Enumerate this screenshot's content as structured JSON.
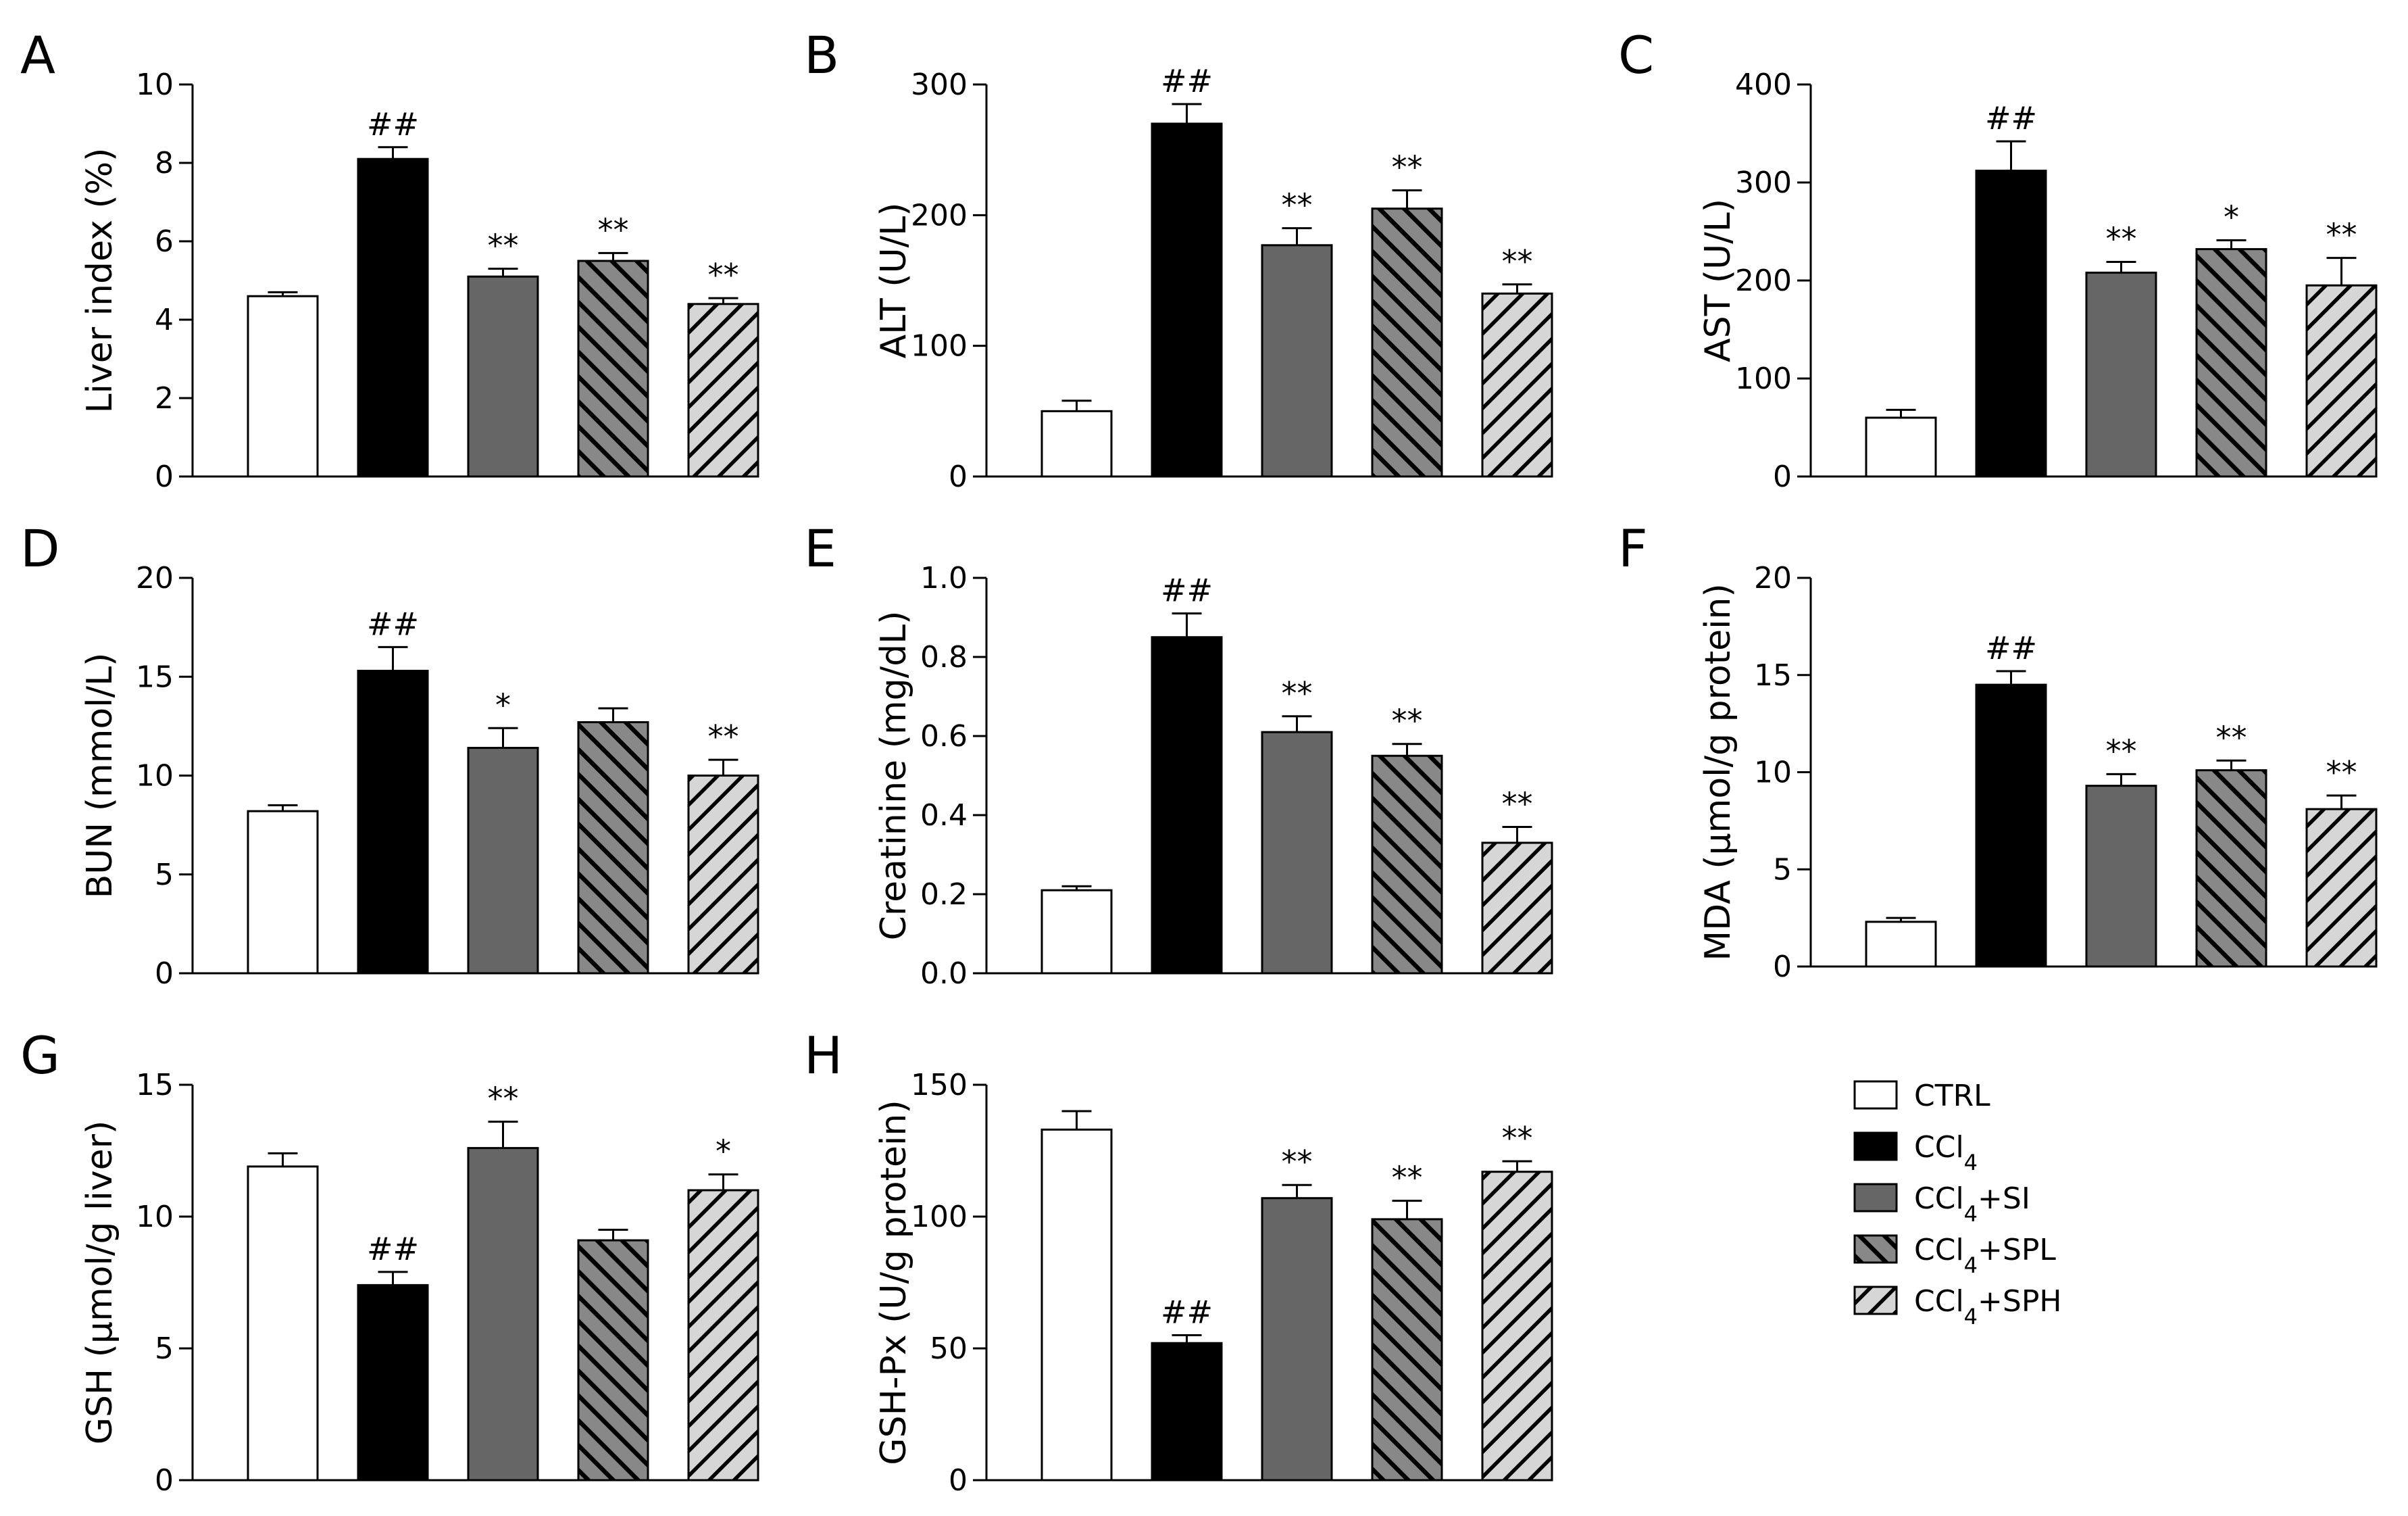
{
  "legend": [
    {
      "label": "CTRL",
      "sub": "",
      "suffix": ""
    },
    {
      "label": "CCl",
      "sub": "4",
      "suffix": ""
    },
    {
      "label": "CCl",
      "sub": "4",
      "suffix": "+SI"
    },
    {
      "label": "CCl",
      "sub": "4",
      "suffix": "+SPL"
    },
    {
      "label": "CCl",
      "sub": "4",
      "suffix": "+SPH"
    }
  ],
  "colors": {
    "ctrl": "#ffffff",
    "ccl4": "#000000",
    "si": "#666666",
    "spl_bg": "#888888",
    "sph_bg": "#d6d6d6",
    "stroke": "#000000"
  },
  "chart_data": [
    {
      "type": "bar",
      "panel": "A",
      "ylabel": "Liver index (%)",
      "categories": [
        "CTRL",
        "CCl4",
        "CCl4+SI",
        "CCl4+SPL",
        "CCl4+SPH"
      ],
      "values": [
        4.6,
        8.1,
        5.1,
        5.5,
        4.4
      ],
      "errors": [
        0.1,
        0.3,
        0.2,
        0.2,
        0.15
      ],
      "sig": [
        "",
        "##",
        "**",
        "**",
        "**"
      ],
      "ylim": [
        0,
        10
      ],
      "yticks": [
        0,
        2,
        4,
        6,
        8,
        10
      ],
      "ytick_labels": [
        "0",
        "2",
        "4",
        "6",
        "8",
        "10"
      ]
    },
    {
      "type": "bar",
      "panel": "B",
      "ylabel": "ALT (U/L)",
      "categories": [
        "CTRL",
        "CCl4",
        "CCl4+SI",
        "CCl4+SPL",
        "CCl4+SPH"
      ],
      "values": [
        50,
        270,
        177,
        205,
        140
      ],
      "errors": [
        8,
        15,
        13,
        14,
        7
      ],
      "sig": [
        "",
        "##",
        "**",
        "**",
        "**"
      ],
      "ylim": [
        0,
        300
      ],
      "yticks": [
        0,
        100,
        200,
        300
      ],
      "ytick_labels": [
        "0",
        "100",
        "200",
        "300"
      ]
    },
    {
      "type": "bar",
      "panel": "C",
      "ylabel": "AST (U/L)",
      "categories": [
        "CTRL",
        "CCl4",
        "CCl4+SI",
        "CCl4+SPL",
        "CCl4+SPH"
      ],
      "values": [
        60,
        312,
        208,
        232,
        195
      ],
      "errors": [
        8,
        30,
        11,
        9,
        28
      ],
      "sig": [
        "",
        "##",
        "**",
        "*",
        "**"
      ],
      "ylim": [
        0,
        400
      ],
      "yticks": [
        0,
        100,
        200,
        300,
        400
      ],
      "ytick_labels": [
        "0",
        "100",
        "200",
        "300",
        "400"
      ]
    },
    {
      "type": "bar",
      "panel": "D",
      "ylabel": "BUN (mmol/L)",
      "categories": [
        "CTRL",
        "CCl4",
        "CCl4+SI",
        "CCl4+SPL",
        "CCl4+SPH"
      ],
      "values": [
        8.2,
        15.3,
        11.4,
        12.7,
        10.0
      ],
      "errors": [
        0.3,
        1.2,
        1.0,
        0.7,
        0.8
      ],
      "sig": [
        "",
        "##",
        "*",
        "",
        "**"
      ],
      "ylim": [
        0,
        20
      ],
      "yticks": [
        0,
        5,
        10,
        15,
        20
      ],
      "ytick_labels": [
        "0",
        "5",
        "10",
        "15",
        "20"
      ]
    },
    {
      "type": "bar",
      "panel": "E",
      "ylabel": "Creatinine (mg/dL)",
      "categories": [
        "CTRL",
        "CCl4",
        "CCl4+SI",
        "CCl4+SPL",
        "CCl4+SPH"
      ],
      "values": [
        0.21,
        0.85,
        0.61,
        0.55,
        0.33
      ],
      "errors": [
        0.01,
        0.06,
        0.04,
        0.03,
        0.04
      ],
      "sig": [
        "",
        "##",
        "**",
        "**",
        "**"
      ],
      "ylim": [
        0,
        1.0
      ],
      "yticks": [
        0,
        0.2,
        0.4,
        0.6,
        0.8,
        1.0
      ],
      "ytick_labels": [
        "0.0",
        "0.2",
        "0.4",
        "0.6",
        "0.8",
        "1.0"
      ]
    },
    {
      "type": "bar",
      "panel": "F",
      "ylabel": "MDA (µmol/g protein)",
      "categories": [
        "CTRL",
        "CCl4",
        "CCl4+SI",
        "CCl4+SPL",
        "CCl4+SPH"
      ],
      "values": [
        2.3,
        14.5,
        9.3,
        10.1,
        8.1
      ],
      "errors": [
        0.2,
        0.7,
        0.6,
        0.5,
        0.7
      ],
      "sig": [
        "",
        "##",
        "**",
        "**",
        "**"
      ],
      "ylim": [
        0,
        20
      ],
      "yticks": [
        0,
        5,
        10,
        15,
        20
      ],
      "ytick_labels": [
        "0",
        "5",
        "10",
        "15",
        "20"
      ]
    },
    {
      "type": "bar",
      "panel": "G",
      "ylabel": "GSH (µmol/g liver)",
      "categories": [
        "CTRL",
        "CCl4",
        "CCl4+SI",
        "CCl4+SPL",
        "CCl4+SPH"
      ],
      "values": [
        11.9,
        7.4,
        12.6,
        9.1,
        11.0
      ],
      "errors": [
        0.5,
        0.5,
        1.0,
        0.4,
        0.6
      ],
      "sig": [
        "",
        "##",
        "**",
        "",
        "*"
      ],
      "ylim": [
        0,
        15
      ],
      "yticks": [
        0,
        5,
        10,
        15
      ],
      "ytick_labels": [
        "0",
        "5",
        "10",
        "15"
      ]
    },
    {
      "type": "bar",
      "panel": "H",
      "ylabel": "GSH-Px (U/g protein)",
      "categories": [
        "CTRL",
        "CCl4",
        "CCl4+SI",
        "CCl4+SPL",
        "CCl4+SPH"
      ],
      "values": [
        133,
        52,
        107,
        99,
        117
      ],
      "errors": [
        7,
        3,
        5,
        7,
        4
      ],
      "sig": [
        "",
        "##",
        "**",
        "**",
        "**"
      ],
      "ylim": [
        0,
        150
      ],
      "yticks": [
        0,
        50,
        100,
        150
      ],
      "ytick_labels": [
        "0",
        "50",
        "100",
        "150"
      ]
    }
  ]
}
